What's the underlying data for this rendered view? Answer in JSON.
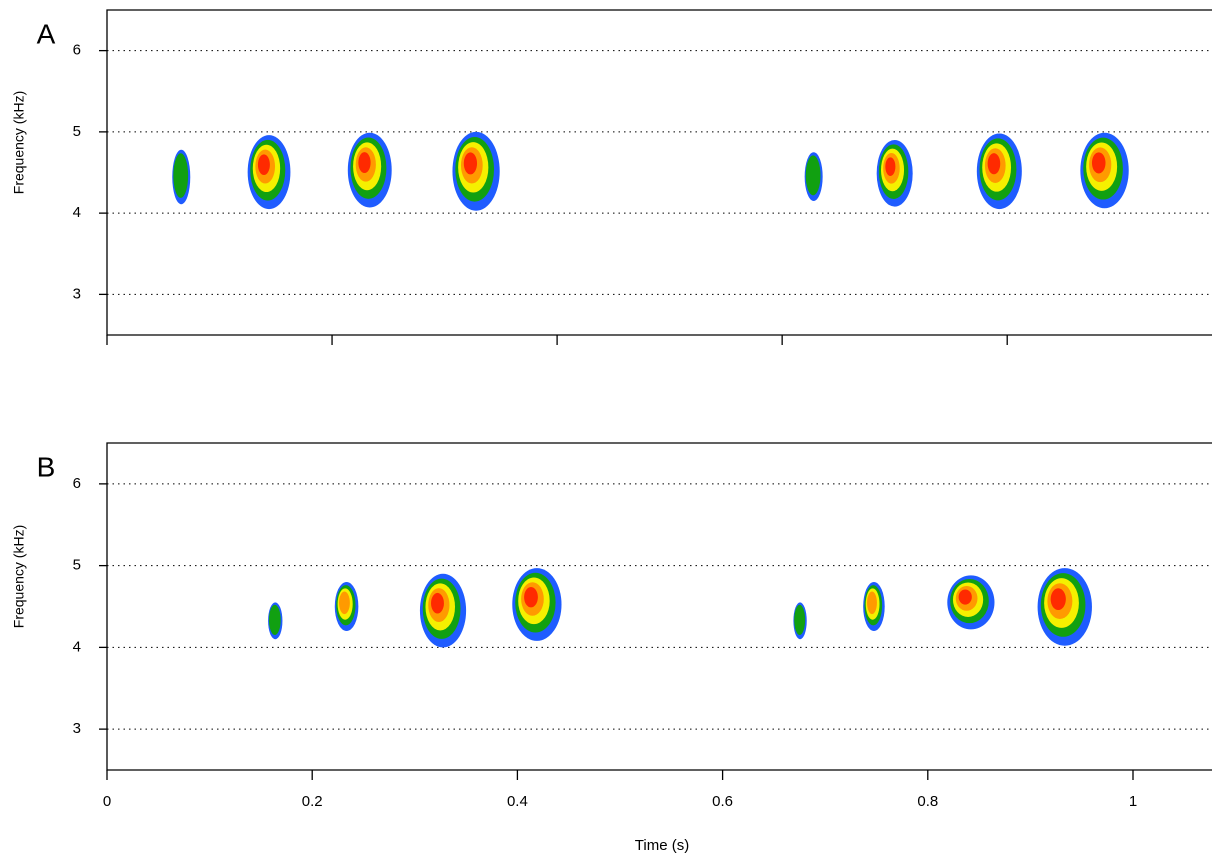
{
  "chart_data": [
    {
      "type": "spectrogram",
      "panel_label": "A",
      "ylabel": "Frequency (kHz)",
      "xlim": [
        0,
        0.982
      ],
      "xticks": [
        0,
        0.2,
        0.4,
        0.6,
        0.8
      ],
      "ylim": [
        2.5,
        6.5
      ],
      "yticks": [
        3,
        4,
        5,
        6
      ],
      "grid": true,
      "level_colors": [
        "#1f5cff",
        "#11a011",
        "#f5f000",
        "#ff9a00",
        "#ff2a00"
      ],
      "syllables": {
        "onset": [
          0.058,
          0.125,
          0.214,
          0.307,
          0.62,
          0.684,
          0.773,
          0.865
        ],
        "offset": [
          0.074,
          0.163,
          0.253,
          0.349,
          0.636,
          0.716,
          0.813,
          0.908
        ],
        "low": [
          4.11,
          4.05,
          4.07,
          4.03,
          4.15,
          4.08,
          4.05,
          4.06
        ],
        "high": [
          4.78,
          4.96,
          4.99,
          5.0,
          4.75,
          4.9,
          4.98,
          4.99
        ],
        "max_level": [
          1,
          4,
          4,
          4,
          1,
          4,
          4,
          4
        ]
      }
    },
    {
      "type": "spectrogram",
      "panel_label": "B",
      "ylabel": "Frequency (kHz)",
      "xlabel": "Time (s)",
      "xlim": [
        0,
        1.077
      ],
      "xticks": [
        0,
        0.2,
        0.4,
        0.6,
        0.8,
        1
      ],
      "ylim": [
        2.5,
        6.5
      ],
      "yticks": [
        3,
        4,
        5,
        6
      ],
      "grid": true,
      "level_colors": [
        "#1f5cff",
        "#11a011",
        "#f5f000",
        "#ff9a00",
        "#ff2a00"
      ],
      "syllables": {
        "onset": [
          0.157,
          0.222,
          0.305,
          0.395,
          0.669,
          0.737,
          0.819,
          0.907
        ],
        "offset": [
          0.171,
          0.245,
          0.35,
          0.443,
          0.682,
          0.758,
          0.865,
          0.96
        ],
        "low": [
          4.1,
          4.2,
          4.0,
          4.08,
          4.1,
          4.2,
          4.22,
          4.02
        ],
        "high": [
          4.55,
          4.8,
          4.9,
          4.97,
          4.55,
          4.8,
          4.88,
          4.97
        ],
        "max_level": [
          1,
          3,
          4,
          4,
          1,
          3,
          4,
          4
        ]
      }
    }
  ]
}
